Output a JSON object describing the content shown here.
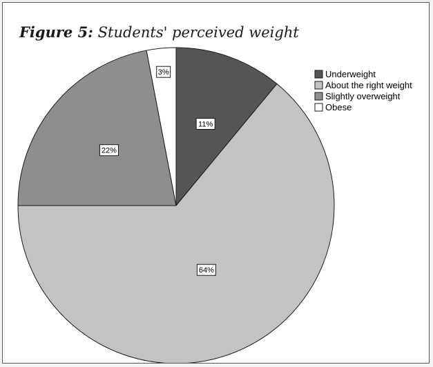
{
  "figure": {
    "label": "Figure 5:",
    "caption": "Students' perceived weight"
  },
  "chart_data": {
    "type": "pie",
    "title": "Students' perceived weight",
    "legend_position": "top-right",
    "start_angle": "12 o'clock, clockwise",
    "slices": [
      {
        "name": "Underweight",
        "value": 11,
        "label": "11%",
        "color": "#555555"
      },
      {
        "name": "About the right weight",
        "value": 64,
        "label": "64%",
        "color": "#c3c3c3"
      },
      {
        "name": "Slightly overweight",
        "value": 22,
        "label": "22%",
        "color": "#8e8e8e"
      },
      {
        "name": "Obese",
        "value": 3,
        "label": "3%",
        "color": "#ffffff"
      }
    ]
  }
}
